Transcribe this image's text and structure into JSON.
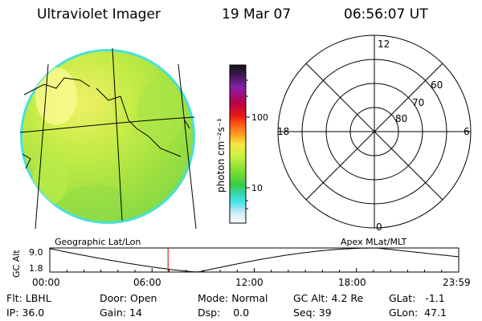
{
  "header": {
    "title": "Ultraviolet Imager",
    "date": "19 Mar 07",
    "time": "06:56:07 UT"
  },
  "colorbar": {
    "unit_label": "photon cm⁻²s⁻¹",
    "ticks": [
      "100",
      "10"
    ]
  },
  "polar": {
    "lat_labels": [
      "60",
      "70",
      "80"
    ],
    "mlt_labels": {
      "top": "12",
      "bottom": "0",
      "left": "18",
      "right": "6"
    }
  },
  "orbit": {
    "left_label": "Geographic Lat/Lon",
    "right_label": "Apex MLat/MLT",
    "axis_label": "GC Alt",
    "ymax_label": "9.0",
    "ymin_label": "1.8",
    "ylim": [
      1.8,
      9.0
    ],
    "time_ticks": [
      "00:00",
      "06:00",
      "12:00",
      "18:00",
      "23:59"
    ],
    "current_time_hours": 6.94
  },
  "footer": {
    "row1": [
      {
        "key": "Flt:",
        "value": "LBHL"
      },
      {
        "key": "Door:",
        "value": "Open"
      },
      {
        "key": "Mode:",
        "value": "Normal"
      },
      {
        "key": "GC Alt:",
        "value": "4.2 Re"
      },
      {
        "key": "GLat:",
        "value": "-1.1"
      }
    ],
    "row2": [
      {
        "key": "IP:",
        "value": "36.0"
      },
      {
        "key": "Gain:",
        "value": "14"
      },
      {
        "key": "Dsp:",
        "value": "0.0"
      },
      {
        "key": "Seq:",
        "value": "39"
      },
      {
        "key": "GLon:",
        "value": "47.1"
      }
    ]
  },
  "colors": {
    "scale": [
      "#1a1a1a",
      "#3a1a4a",
      "#7a1fa0",
      "#b00050",
      "#e0101a",
      "#ff5a1a",
      "#ffa020",
      "#f0e040",
      "#c8f040",
      "#80e030",
      "#40d040",
      "#40d8b0",
      "#40e0f0",
      "#c0e8f0",
      "#ffffff"
    ],
    "marker": "#cc0000"
  }
}
